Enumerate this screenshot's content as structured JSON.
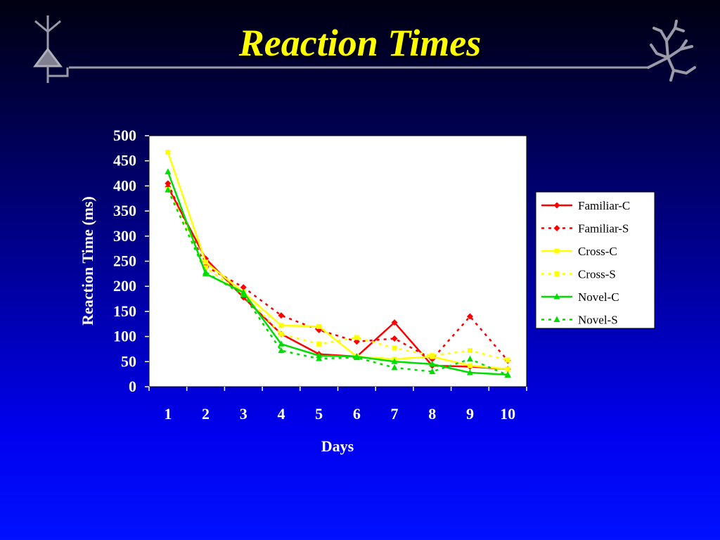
{
  "slide": {
    "title": "Reaction Times"
  },
  "icons": {
    "left": "neuron-pyramidal-icon",
    "right": "neuron-dendrite-icon",
    "line_color": "#9a9aa8"
  },
  "chart_data": {
    "type": "line",
    "xlabel": "Days",
    "ylabel": "Reaction Time (ms)",
    "categories": [
      "1",
      "2",
      "3",
      "4",
      "5",
      "6",
      "7",
      "8",
      "9",
      "10"
    ],
    "ylim": [
      0,
      500
    ],
    "yticks": [
      0,
      50,
      100,
      150,
      200,
      250,
      300,
      350,
      400,
      450,
      500
    ],
    "grid": false,
    "legend_position": "right",
    "plot_background": "#ffffff",
    "series": [
      {
        "name": "Familiar-C",
        "color": "#ff0000",
        "dash": "solid",
        "marker": "diamond",
        "values": [
          398,
          255,
          178,
          105,
          65,
          60,
          128,
          42,
          40,
          35
        ]
      },
      {
        "name": "Familiar-S",
        "color": "#ff0000",
        "dash": "dashed",
        "marker": "diamond",
        "values": [
          405,
          240,
          198,
          142,
          113,
          90,
          96,
          55,
          140,
          52
        ]
      },
      {
        "name": "Cross-C",
        "color": "#ffff00",
        "dash": "solid",
        "marker": "square",
        "values": [
          467,
          248,
          188,
          122,
          120,
          60,
          55,
          60,
          42,
          35
        ]
      },
      {
        "name": "Cross-S",
        "color": "#ffff00",
        "dash": "dashed",
        "marker": "square",
        "values": [
          393,
          237,
          185,
          105,
          85,
          98,
          77,
          62,
          72,
          53
        ]
      },
      {
        "name": "Novel-C",
        "color": "#00dd00",
        "dash": "solid",
        "marker": "triangle",
        "values": [
          428,
          225,
          188,
          85,
          62,
          60,
          50,
          45,
          28,
          24
        ]
      },
      {
        "name": "Novel-S",
        "color": "#00dd00",
        "dash": "dashed",
        "marker": "triangle",
        "values": [
          392,
          228,
          183,
          72,
          56,
          58,
          38,
          30,
          55,
          23
        ]
      }
    ]
  }
}
